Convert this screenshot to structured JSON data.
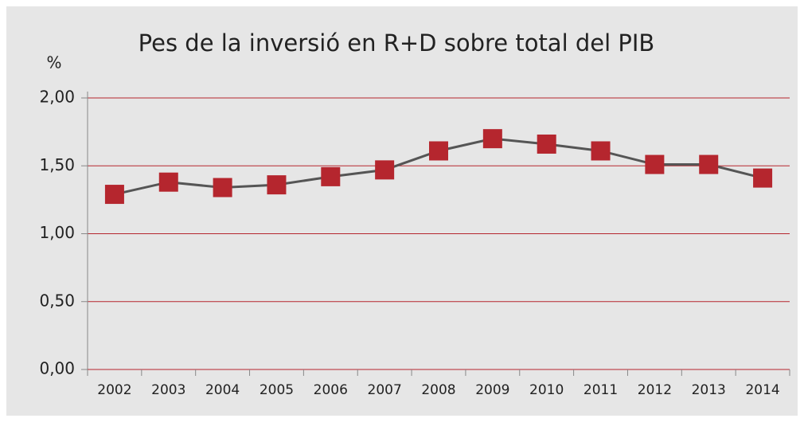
{
  "chart_data": {
    "type": "line",
    "title": "Pes de la inversió en R+D sobre total del PIB",
    "y_label": "%",
    "categories": [
      "2002",
      "2003",
      "2004",
      "2005",
      "2006",
      "2007",
      "2008",
      "2009",
      "2010",
      "2011",
      "2012",
      "2013",
      "2014"
    ],
    "series": [
      {
        "name": "R+D",
        "color": "#555555",
        "marker_color": "#b5262e",
        "values": [
          1.29,
          1.38,
          1.34,
          1.36,
          1.42,
          1.47,
          1.61,
          1.7,
          1.66,
          1.61,
          1.51,
          1.51,
          1.41
        ]
      }
    ],
    "ylim": [
      0,
      2
    ],
    "yticks": [
      {
        "value": 0,
        "label": "0,00"
      },
      {
        "value": 0.5,
        "label": "0,50"
      },
      {
        "value": 1,
        "label": "1,00"
      },
      {
        "value": 1.5,
        "label": "1,50"
      },
      {
        "value": 2,
        "label": "2,00"
      }
    ],
    "grid": true,
    "grid_color": "#b5262e"
  }
}
